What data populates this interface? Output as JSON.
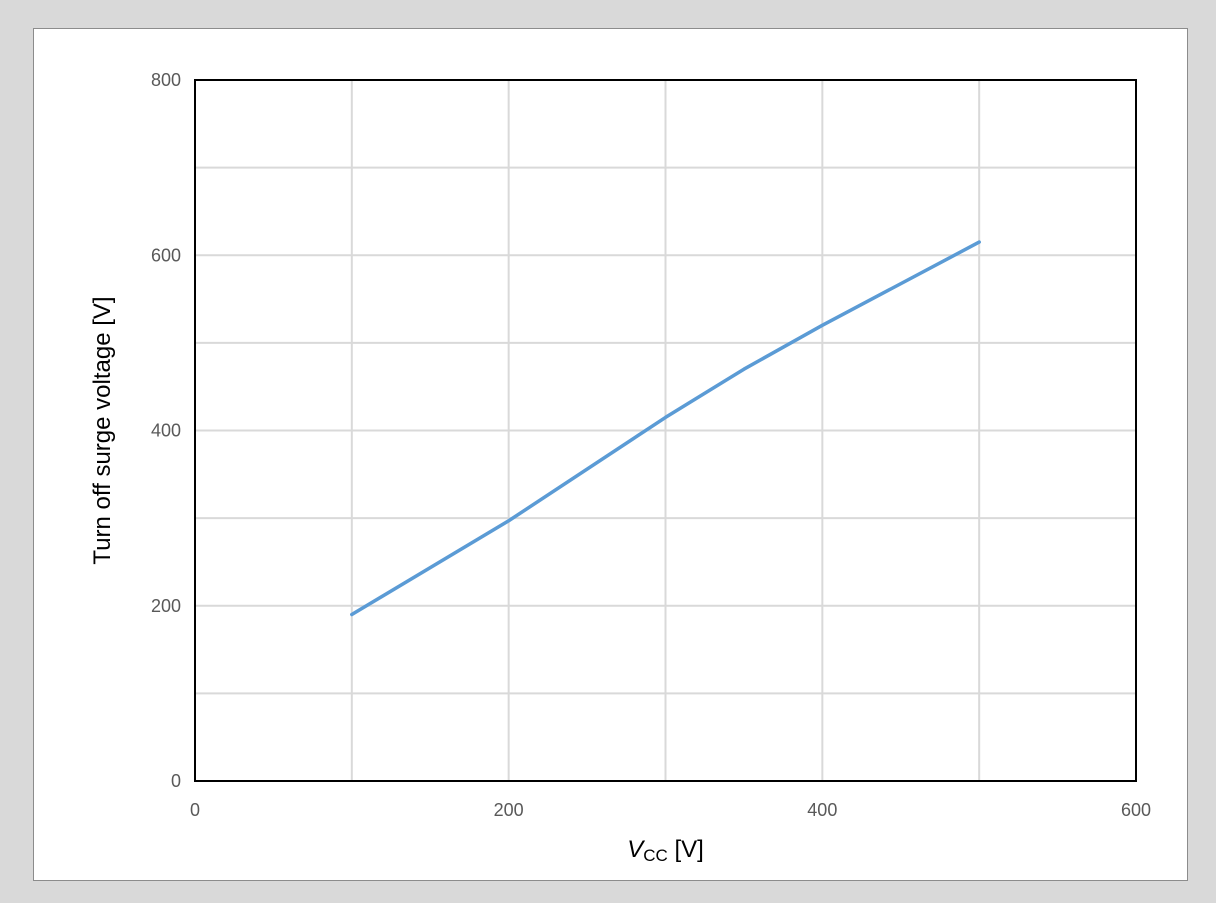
{
  "chart_data": {
    "type": "line",
    "title": "",
    "xlabel": {
      "main": "V",
      "subscript": "CC",
      "unit": " [V]"
    },
    "ylabel": "Turn off surge voltage [V]",
    "xlim": [
      0,
      600
    ],
    "ylim": [
      0,
      800
    ],
    "x_ticks": [
      0,
      200,
      400,
      600
    ],
    "y_ticks": [
      0,
      200,
      400,
      600,
      800
    ],
    "x_grid_step": 100,
    "y_grid_step": 100,
    "grid": true,
    "legend": "none",
    "series": [
      {
        "color": "#5b9bd5",
        "x": [
          100,
          200,
          300,
          350,
          400,
          500
        ],
        "y": [
          190,
          297,
          415,
          470,
          520,
          615
        ]
      }
    ]
  },
  "colors": {
    "grid": "#d9d9d9",
    "axis": "#000000",
    "background": "#ffffff",
    "outer": "#d9d9d9"
  }
}
